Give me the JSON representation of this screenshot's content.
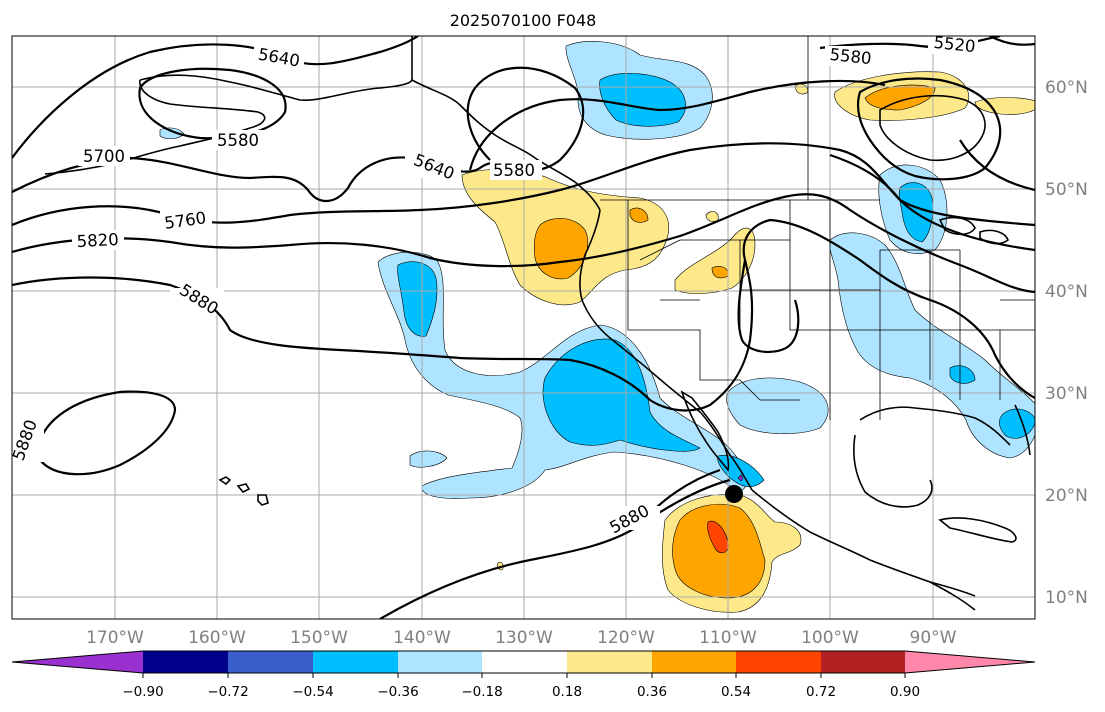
{
  "title": "2025070100 F048",
  "lat_labels": [
    "60°N",
    "50°N",
    "40°N",
    "30°N",
    "20°N",
    "10°N"
  ],
  "lon_labels": [
    "170°W",
    "160°W",
    "150°W",
    "140°W",
    "130°W",
    "120°W",
    "110°W",
    "100°W",
    "90°W"
  ],
  "contour_labels": [
    "5640",
    "5580",
    "5700",
    "5640",
    "5580",
    "5760",
    "5820",
    "5880",
    "5880",
    "5880",
    "5580",
    "5520"
  ],
  "colorbar": {
    "colors": [
      "#9b30d0",
      "#00008b",
      "#3a5fcd",
      "#00bfff",
      "#aee4ff",
      "#ffffff",
      "#fde98a",
      "#ffa500",
      "#ff4500",
      "#b22222",
      "#ff88aa"
    ],
    "tick_labels": [
      "−0.90",
      "−0.72",
      "−0.54",
      "−0.36",
      "−0.18",
      "0.18",
      "0.36",
      "0.54",
      "0.72",
      "0.90"
    ]
  },
  "anomaly_colors": {
    "light_blue": "#aee4ff",
    "blue": "#00bfff",
    "yellow": "#fde98a",
    "orange": "#ffa500",
    "red_orange": "#ff4500",
    "purple": "#9b30d0"
  },
  "marker": "storm-center-marker"
}
